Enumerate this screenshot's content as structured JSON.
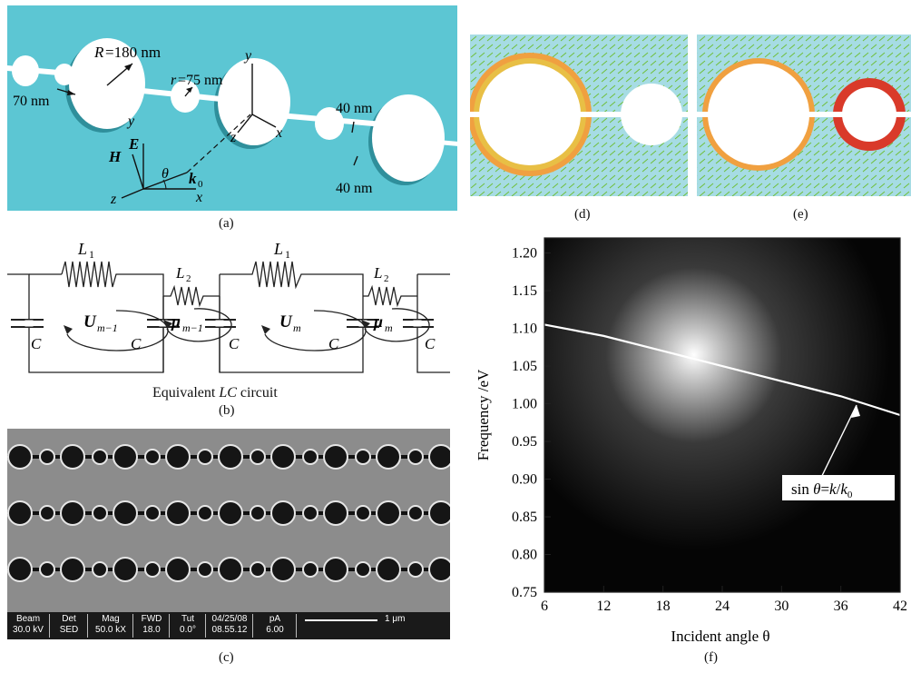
{
  "panel_a": {
    "caption": "(a)",
    "R_label": "R",
    "R_value": "=180 nm",
    "r_label": "r",
    "r_value": "=75 nm",
    "dim_70": "70 nm",
    "dim_40_top": "40 nm",
    "dim_40_bottom": "40 nm",
    "axis_y1": "y",
    "axis_z1": "z",
    "axis_x1": "x",
    "axis_y2": "y",
    "axis_z2": "z",
    "axis_x2": "x",
    "H": "H",
    "E": "E",
    "theta": "θ",
    "k0": "k",
    "k0_sub": "0"
  },
  "panel_b": {
    "caption": "(b)",
    "title_pre": "Equivalent ",
    "title_lc": "LC",
    "title_post": " circuit",
    "L1_a": "L",
    "L1_a_sub": "1",
    "L1_b": "L",
    "L1_b_sub": "1",
    "L2_a": "L",
    "L2_a_sub": "2",
    "L2_b": "L",
    "L2_b_sub": "2",
    "C": "C",
    "U1": "U",
    "U1_sub": "m−1",
    "mu1": "μ",
    "mu1_sub": "m−1",
    "U2": "U",
    "U2_sub": "m",
    "mu2": "μ",
    "mu2_sub": "m"
  },
  "panel_c": {
    "caption": "(c)",
    "sem": {
      "beam_label": "Beam",
      "beam_value": "30.0 kV",
      "det_label": "Det",
      "det_value": "SED",
      "mag_label": "Mag",
      "mag_value": "50.0 kX",
      "fwd_label": "FWD",
      "fwd_value": "18.0",
      "tilt_label": "Tut",
      "tilt_value": "0.0°",
      "date": "04/25/08",
      "time": "08.55.12",
      "current_label": "pA",
      "current_value": "6.00",
      "scale": "1 μm"
    }
  },
  "panel_d": {
    "caption": "(d)"
  },
  "panel_e": {
    "caption": "(e)"
  },
  "panel_f": {
    "caption": "(f)",
    "annotation_pre": "sin ",
    "annotation_theta": "θ",
    "annotation_mid": "=",
    "annotation_k": "k",
    "annotation_slash": "/",
    "annotation_k0": "k",
    "annotation_k0_sub": "0"
  },
  "chart_data": {
    "type": "heatmap",
    "xlabel": "Incident angle θ",
    "ylabel": "Frequency /eV",
    "xlim": [
      6,
      42
    ],
    "ylim": [
      0.75,
      1.22
    ],
    "x_ticks": [
      "6",
      "12",
      "18",
      "24",
      "30",
      "36",
      "42"
    ],
    "y_ticks": [
      "0.75",
      "0.80",
      "0.85",
      "0.90",
      "0.95",
      "1.00",
      "1.05",
      "1.10",
      "1.15",
      "1.20"
    ],
    "series": [
      {
        "x": [
          6,
          12,
          18,
          24,
          30,
          36,
          42
        ],
        "y": [
          1.105,
          1.09,
          1.07,
          1.05,
          1.03,
          1.01,
          0.985
        ]
      }
    ]
  }
}
